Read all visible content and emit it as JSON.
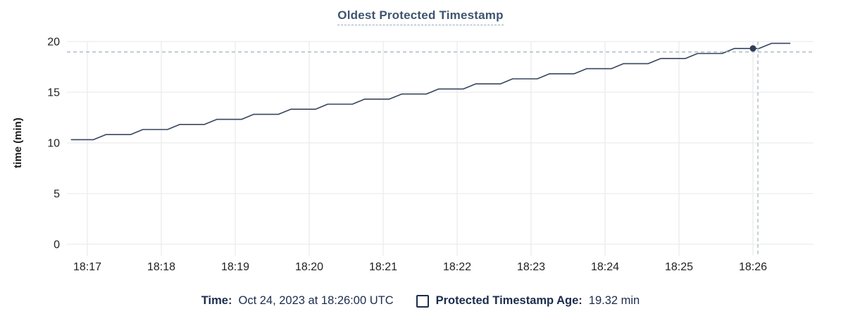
{
  "header": {
    "title": "Oldest Protected Timestamp"
  },
  "chart_data": {
    "type": "line",
    "title": "Oldest Protected Timestamp",
    "xlabel": "",
    "ylabel": "time (min)",
    "ylim": [
      0,
      20
    ],
    "yticks": [
      0,
      5,
      10,
      15,
      20
    ],
    "xticks": [
      "18:17",
      "18:18",
      "18:19",
      "18:20",
      "18:21",
      "18:22",
      "18:23",
      "18:24",
      "18:25",
      "18:26"
    ],
    "grid": true,
    "legend_position": "bottom",
    "series": [
      {
        "name": "Protected Timestamp Age",
        "unit": "min",
        "points": [
          [
            "18:16:47",
            10.32
          ],
          [
            "18:17:05",
            10.32
          ],
          [
            "18:17:15",
            10.82
          ],
          [
            "18:17:35",
            10.82
          ],
          [
            "18:17:45",
            11.32
          ],
          [
            "18:18:05",
            11.32
          ],
          [
            "18:18:15",
            11.82
          ],
          [
            "18:18:35",
            11.82
          ],
          [
            "18:18:45",
            12.32
          ],
          [
            "18:19:05",
            12.32
          ],
          [
            "18:19:15",
            12.82
          ],
          [
            "18:19:35",
            12.82
          ],
          [
            "18:19:45",
            13.32
          ],
          [
            "18:20:05",
            13.32
          ],
          [
            "18:20:15",
            13.82
          ],
          [
            "18:20:35",
            13.82
          ],
          [
            "18:20:45",
            14.32
          ],
          [
            "18:21:05",
            14.32
          ],
          [
            "18:21:15",
            14.82
          ],
          [
            "18:21:35",
            14.82
          ],
          [
            "18:21:45",
            15.32
          ],
          [
            "18:22:05",
            15.32
          ],
          [
            "18:22:15",
            15.82
          ],
          [
            "18:22:35",
            15.82
          ],
          [
            "18:22:45",
            16.32
          ],
          [
            "18:23:05",
            16.32
          ],
          [
            "18:23:15",
            16.82
          ],
          [
            "18:23:35",
            16.82
          ],
          [
            "18:23:45",
            17.32
          ],
          [
            "18:24:05",
            17.32
          ],
          [
            "18:24:15",
            17.82
          ],
          [
            "18:24:35",
            17.82
          ],
          [
            "18:24:45",
            18.32
          ],
          [
            "18:25:05",
            18.32
          ],
          [
            "18:25:15",
            18.82
          ],
          [
            "18:25:35",
            18.82
          ],
          [
            "18:25:45",
            19.32
          ],
          [
            "18:26:05",
            19.32
          ],
          [
            "18:26:15",
            19.82
          ],
          [
            "18:26:30",
            19.82
          ]
        ]
      }
    ],
    "hover": {
      "point_time": "18:26:00",
      "point_value": 19.32,
      "cursor_time": "18:26:04",
      "cursor_value": 18.97
    }
  },
  "footer": {
    "time_label": "Time:",
    "time_value": "Oct 24, 2023 at 18:26:00 UTC",
    "series_label": "Protected Timestamp Age:",
    "series_value": "19.32 min"
  },
  "icons": {
    "legend_swatch": "hollow-square-swatch"
  },
  "colors": {
    "line": "#37465f",
    "dot": "#2f3e57",
    "crosshair": "#a6b8c1",
    "grid": "#ececec",
    "title_text": "#3e546f",
    "title_underline": "#93a9c0",
    "footer_text": "#1b2c4d",
    "tick_text": "#212121",
    "axis_title_text": "#1b1b1b"
  }
}
